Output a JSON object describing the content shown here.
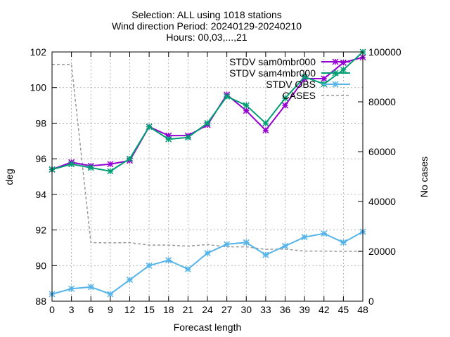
{
  "chart_data": {
    "type": "line",
    "title_lines": [
      "Selection: ALL using  1018 stations",
      "Wind direction   Period: 20240129-20240210",
      "Hours: 00,03,...,21"
    ],
    "xlabel": "Forecast length",
    "ylabel": "deg",
    "y2label": "No cases",
    "x": [
      0,
      3,
      6,
      9,
      12,
      15,
      18,
      21,
      24,
      27,
      30,
      33,
      36,
      39,
      42,
      45,
      48
    ],
    "xlim": [
      0,
      48
    ],
    "ylim": [
      88,
      102
    ],
    "yticks": [
      88,
      90,
      92,
      94,
      96,
      98,
      100,
      102
    ],
    "y2lim": [
      0,
      100000
    ],
    "y2ticks": [
      0,
      20000,
      40000,
      60000,
      80000,
      100000
    ],
    "grid": true,
    "legend_position": "top-right",
    "series": [
      {
        "name": "STDV sam0mbr000",
        "color": "#9400d3",
        "axis": "left",
        "marker": "x",
        "values": [
          95.4,
          95.8,
          95.6,
          95.7,
          95.9,
          97.8,
          97.3,
          97.3,
          97.9,
          99.6,
          98.7,
          97.6,
          99.0,
          100.5,
          100.5,
          101.4,
          101.7
        ]
      },
      {
        "name": "STDV sam4mbr000",
        "color": "#009e73",
        "axis": "left",
        "marker": "x",
        "values": [
          95.4,
          95.7,
          95.5,
          95.3,
          96.0,
          97.8,
          97.1,
          97.2,
          98.0,
          99.5,
          99.0,
          98.0,
          99.4,
          100.6,
          100.2,
          101.0,
          102.0
        ]
      },
      {
        "name": "STDV OBS",
        "color": "#56b4e9",
        "axis": "left",
        "marker": "x",
        "values": [
          88.4,
          88.7,
          88.8,
          88.4,
          89.2,
          90.0,
          90.3,
          89.8,
          90.7,
          91.2,
          91.3,
          90.6,
          91.1,
          91.6,
          91.8,
          91.3,
          91.9
        ]
      },
      {
        "name": "CASES",
        "color": "#999999",
        "axis": "right",
        "dashed": true,
        "values": [
          95000,
          95000,
          23500,
          23400,
          23500,
          22500,
          22500,
          22100,
          22700,
          21800,
          21800,
          20800,
          20900,
          20100,
          20100,
          20000,
          20000
        ]
      }
    ]
  }
}
